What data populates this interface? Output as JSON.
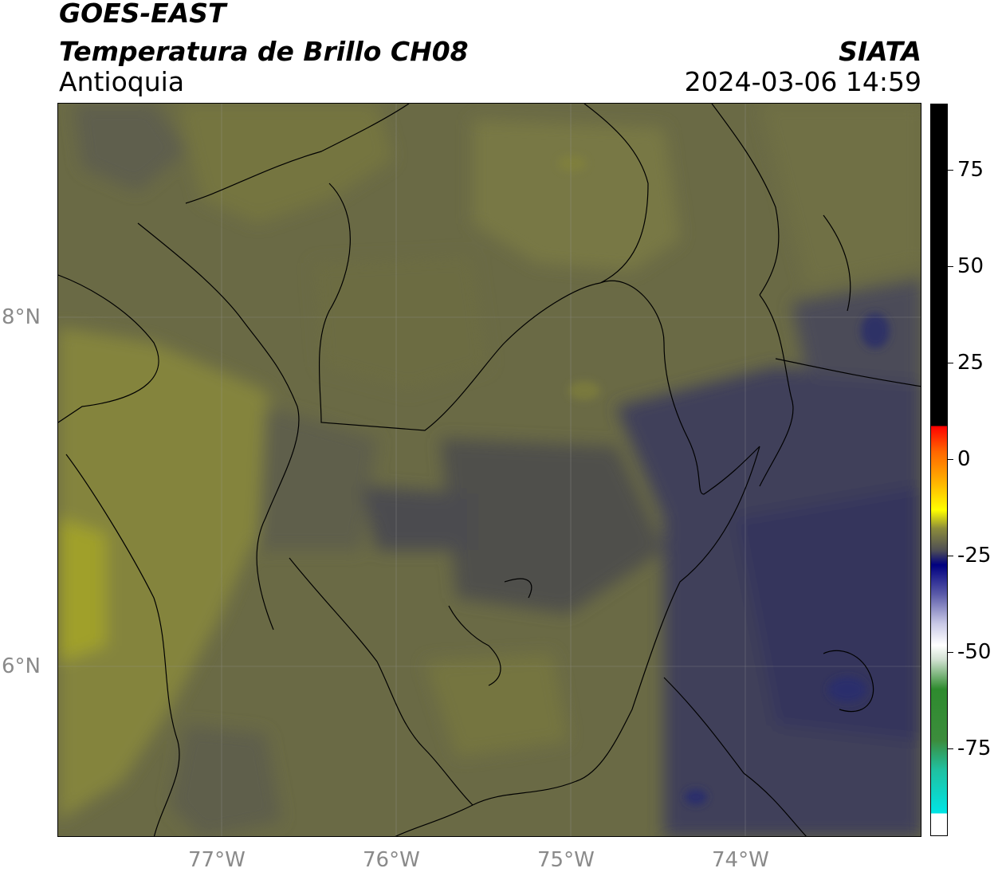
{
  "header": {
    "satellite": "GOES-EAST",
    "product": "Temperatura de Brillo CH08",
    "agency": "SIATA",
    "region": "Antioquia",
    "timestamp": "2024-03-06 14:59"
  },
  "map": {
    "lon_labels": [
      "77°W",
      "76°W",
      "75°W",
      "74°W"
    ],
    "lat_labels": [
      "8°N",
      "6°N"
    ],
    "colors": {
      "olive_light": "#8c8c3a",
      "olive_mid": "#74743f",
      "olive_dark": "#5f5f47",
      "gray_dark": "#4c4c4c",
      "navy": "#34355c",
      "navy_deep": "#25286e",
      "yellow_patch": "#a0a02c"
    }
  },
  "colorbar": {
    "ticks": [
      "75",
      "50",
      "25",
      "0",
      "-25",
      "-50",
      "-75"
    ],
    "colors": {
      "black": "#000000",
      "red": "#ff0000",
      "orange": "#ff9900",
      "yellow": "#ffff00",
      "navy": "#000080",
      "white": "#ffffff",
      "green": "#2e8b2e",
      "cyan": "#00e5e5"
    }
  }
}
